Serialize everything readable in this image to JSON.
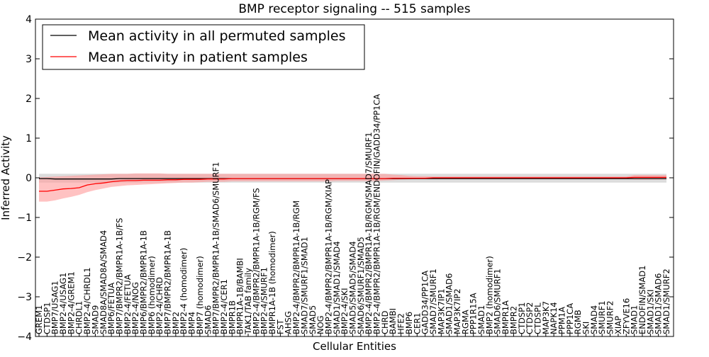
{
  "chart_data": {
    "type": "line",
    "title": "BMP receptor signaling -- 515 samples",
    "xlabel": "Cellular Entities",
    "ylabel": "Inferred Activity",
    "ylim": [
      -4,
      4
    ],
    "yticks": [
      -4,
      -3,
      -2,
      -1,
      0,
      1,
      2,
      3,
      4
    ],
    "ytick_labels": [
      "−4",
      "−3",
      "−2",
      "−1",
      "0",
      "1",
      "2",
      "3",
      "4"
    ],
    "grid": false,
    "legend_position": "top-left",
    "categories": [
      "GREM1",
      "CTDSP1",
      "BMP7/USAG1",
      "BMP2-4/USAG1",
      "BMP2-4/GREM1",
      "CHRDL1",
      "BMP2-4/CHRDL1",
      "SMAD9",
      "SMAD8A/SMAD8A/SMAD4",
      "BMP6/FETUA",
      "BMP7/BMPR2/BMPR1A-1B/FS",
      "BMP2-4/FETUA",
      "BMP2-4/NOG",
      "BMP6/BMPR2/BMPR1A-1B",
      "BMP6 (homodimer)",
      "BMP2-4/CHRD",
      "BMP7/BMPR2/BMPR1A-1B",
      "BMP2",
      "BMP2-4 (homodimer)",
      "BMP4",
      "BMP7 (homodimer)",
      "SMAD6",
      "BMP7/BMPR2/BMPR1A-1B/SMAD6/SMURF1",
      "BMP2-4/CER1",
      "BMPR1B",
      "BMPR1A-1B/BAMBI",
      "TAK1/TAB family",
      "BMP2-4/BMPR2/BMPR1A-1B/RGM/FS",
      "BMP2-4/SMURF1",
      "BMPR1A-1B (homodimer)",
      "FST",
      "AHSG",
      "BMP2-4/BMPR2/BMPR1A-1B/RGM",
      "SMAD7/SMURF1/SMAD1",
      "SMAD5",
      "NOG",
      "BMP2-4/BMPR2/BMPR1A-1B/RGM/XIAP",
      "SMAD1/SMAD1/SMAD4",
      "BMP2-4/SKI",
      "SMAD5/SMAD5/SMAD4",
      "SMAD6/SMURF1/SMAD5",
      "BMP2-4/BMPR2/BMPR1A-1B/RGM/SMAD7/SMURF1",
      "BMP2-4/BMPR2/BMPR1A-1B/RGM/ENDOFIN/GADD34/PP1CA",
      "CHRD",
      "BAMBI",
      "HFE2",
      "BMP6",
      "CER1",
      "GADD34/PP1CA",
      "SMAD7/SMURF1",
      "MAP3K7IP1",
      "SMAD1/SMAD6",
      "MAP3K7IP2",
      "RGMA",
      "PPP1R15A",
      "SMAD1",
      "BMP2 (homodimer)",
      "SMAD6/SMURF1",
      "BMPR1A",
      "BMPR2",
      "CTDSP1",
      "CTDSP2",
      "CTDSPL",
      "MAP3K7",
      "NAPK14",
      "PPM1A",
      "PPP1CA",
      "RGMB",
      "SKI",
      "SMAD4",
      "SMURF1",
      "SMURF2",
      "XIAP",
      "ZFYVE16",
      "SMAD1",
      "ENDOFIN/SMAD1",
      "SMAD1/SKI",
      "SMAD1/SMAD6",
      "SMAD1/SMURF2"
    ],
    "series": [
      {
        "name": "Mean activity in all permuted samples",
        "color": "#000000",
        "band_color": "#c0c0c0",
        "values": [
          -0.02,
          -0.02,
          -0.03,
          -0.03,
          -0.03,
          -0.03,
          -0.03,
          -0.03,
          -0.03,
          -0.03,
          -0.02,
          -0.02,
          -0.02,
          -0.02,
          -0.02,
          -0.02,
          -0.02,
          -0.02,
          -0.02,
          -0.02,
          -0.02,
          -0.02,
          -0.02,
          -0.02,
          -0.02,
          -0.02,
          -0.02,
          -0.02,
          -0.02,
          -0.02,
          -0.02,
          -0.02,
          -0.02,
          -0.02,
          -0.02,
          -0.02,
          -0.02,
          -0.02,
          -0.02,
          -0.02,
          -0.02,
          -0.02,
          -0.02,
          -0.02,
          -0.02,
          -0.02,
          -0.02,
          -0.02,
          -0.02,
          -0.02,
          -0.02,
          -0.02,
          -0.02,
          -0.02,
          -0.02,
          -0.02,
          -0.02,
          -0.02,
          -0.02,
          -0.02,
          -0.02,
          -0.02,
          -0.02,
          -0.02,
          -0.02,
          -0.02,
          -0.02,
          -0.02,
          -0.02,
          -0.02,
          -0.02,
          -0.02,
          -0.02,
          -0.02,
          -0.02,
          -0.02,
          -0.02,
          -0.02,
          -0.02
        ],
        "lower": [
          -0.12,
          -0.12,
          -0.12,
          -0.12,
          -0.12,
          -0.12,
          -0.12,
          -0.12,
          -0.12,
          -0.12,
          -0.12,
          -0.12,
          -0.12,
          -0.12,
          -0.12,
          -0.12,
          -0.12,
          -0.12,
          -0.12,
          -0.12,
          -0.12,
          -0.12,
          -0.12,
          -0.12,
          -0.12,
          -0.12,
          -0.12,
          -0.12,
          -0.12,
          -0.12,
          -0.12,
          -0.12,
          -0.12,
          -0.12,
          -0.12,
          -0.12,
          -0.12,
          -0.12,
          -0.12,
          -0.12,
          -0.12,
          -0.12,
          -0.12,
          -0.12,
          -0.12,
          -0.12,
          -0.12,
          -0.12,
          -0.12,
          -0.12,
          -0.12,
          -0.12,
          -0.12,
          -0.12,
          -0.12,
          -0.12,
          -0.12,
          -0.12,
          -0.12,
          -0.12,
          -0.12,
          -0.12,
          -0.12,
          -0.12,
          -0.12,
          -0.12,
          -0.12,
          -0.12,
          -0.12,
          -0.12,
          -0.12,
          -0.12,
          -0.12,
          -0.12,
          -0.12,
          -0.12,
          -0.12,
          -0.12,
          -0.12
        ],
        "upper": [
          0.1,
          0.1,
          0.1,
          0.1,
          0.1,
          0.1,
          0.1,
          0.1,
          0.1,
          0.1,
          0.1,
          0.1,
          0.1,
          0.1,
          0.1,
          0.1,
          0.1,
          0.1,
          0.1,
          0.1,
          0.1,
          0.1,
          0.1,
          0.1,
          0.1,
          0.1,
          0.1,
          0.1,
          0.1,
          0.1,
          0.1,
          0.1,
          0.1,
          0.1,
          0.1,
          0.1,
          0.1,
          0.1,
          0.1,
          0.1,
          0.1,
          0.1,
          0.1,
          0.1,
          0.1,
          0.1,
          0.1,
          0.1,
          0.1,
          0.1,
          0.1,
          0.1,
          0.1,
          0.1,
          0.1,
          0.1,
          0.1,
          0.1,
          0.1,
          0.1,
          0.1,
          0.1,
          0.1,
          0.1,
          0.1,
          0.1,
          0.1,
          0.1,
          0.1,
          0.1,
          0.1,
          0.1,
          0.1,
          0.1,
          0.1,
          0.1,
          0.1,
          0.1,
          0.1
        ]
      },
      {
        "name": "Mean activity in patient samples",
        "color": "#ff0000",
        "band_color": "#ff9a9a",
        "values": [
          -0.34,
          -0.34,
          -0.31,
          -0.28,
          -0.27,
          -0.25,
          -0.18,
          -0.15,
          -0.13,
          -0.1,
          -0.08,
          -0.07,
          -0.07,
          -0.06,
          -0.06,
          -0.06,
          -0.05,
          -0.05,
          -0.04,
          -0.04,
          -0.04,
          -0.03,
          -0.03,
          -0.03,
          -0.02,
          -0.02,
          -0.02,
          -0.02,
          -0.02,
          -0.02,
          -0.02,
          -0.02,
          -0.02,
          -0.02,
          -0.02,
          -0.02,
          -0.02,
          -0.02,
          -0.02,
          -0.02,
          -0.02,
          -0.02,
          -0.02,
          -0.02,
          -0.01,
          -0.01,
          -0.01,
          -0.01,
          -0.01,
          0.0,
          0.0,
          0.0,
          0.0,
          0.0,
          0.0,
          0.0,
          0.0,
          0.0,
          0.0,
          0.0,
          0.0,
          0.0,
          0.0,
          0.0,
          0.0,
          0.0,
          0.0,
          0.0,
          0.0,
          0.0,
          0.0,
          0.0,
          0.0,
          0.0,
          0.01,
          0.01,
          0.01,
          0.01,
          0.01
        ],
        "lower": [
          -0.6,
          -0.6,
          -0.57,
          -0.52,
          -0.48,
          -0.43,
          -0.36,
          -0.31,
          -0.27,
          -0.23,
          -0.21,
          -0.19,
          -0.18,
          -0.17,
          -0.16,
          -0.15,
          -0.14,
          -0.13,
          -0.12,
          -0.12,
          -0.11,
          -0.1,
          -0.1,
          -0.1,
          -0.09,
          -0.09,
          -0.09,
          -0.09,
          -0.09,
          -0.09,
          -0.09,
          -0.09,
          -0.09,
          -0.09,
          -0.09,
          -0.09,
          -0.09,
          -0.08,
          -0.08,
          -0.08,
          -0.08,
          -0.08,
          -0.08,
          -0.07,
          -0.06,
          -0.05,
          -0.04,
          -0.03,
          -0.03,
          -0.02,
          -0.02,
          -0.02,
          -0.02,
          -0.02,
          -0.02,
          -0.02,
          -0.02,
          -0.02,
          -0.02,
          -0.02,
          -0.02,
          -0.02,
          -0.02,
          -0.02,
          -0.02,
          -0.02,
          -0.02,
          -0.02,
          -0.02,
          -0.02,
          -0.02,
          -0.02,
          -0.02,
          -0.02,
          -0.04,
          -0.04,
          -0.04,
          -0.04,
          -0.04
        ],
        "upper": [
          0.01,
          0.02,
          0.03,
          0.04,
          0.05,
          0.06,
          0.07,
          0.08,
          0.09,
          0.1,
          0.1,
          0.1,
          0.11,
          0.11,
          0.11,
          0.11,
          0.1,
          0.1,
          0.1,
          0.1,
          0.1,
          0.1,
          0.1,
          0.1,
          0.1,
          0.1,
          0.1,
          0.1,
          0.1,
          0.1,
          0.1,
          0.1,
          0.1,
          0.1,
          0.1,
          0.1,
          0.1,
          0.1,
          0.1,
          0.1,
          0.1,
          0.1,
          0.1,
          0.1,
          0.08,
          0.07,
          0.05,
          0.04,
          0.04,
          0.03,
          0.03,
          0.03,
          0.03,
          0.03,
          0.03,
          0.03,
          0.03,
          0.03,
          0.03,
          0.03,
          0.03,
          0.03,
          0.03,
          0.03,
          0.03,
          0.03,
          0.03,
          0.03,
          0.03,
          0.03,
          0.03,
          0.03,
          0.03,
          0.03,
          0.07,
          0.07,
          0.07,
          0.07,
          0.07
        ]
      }
    ]
  }
}
